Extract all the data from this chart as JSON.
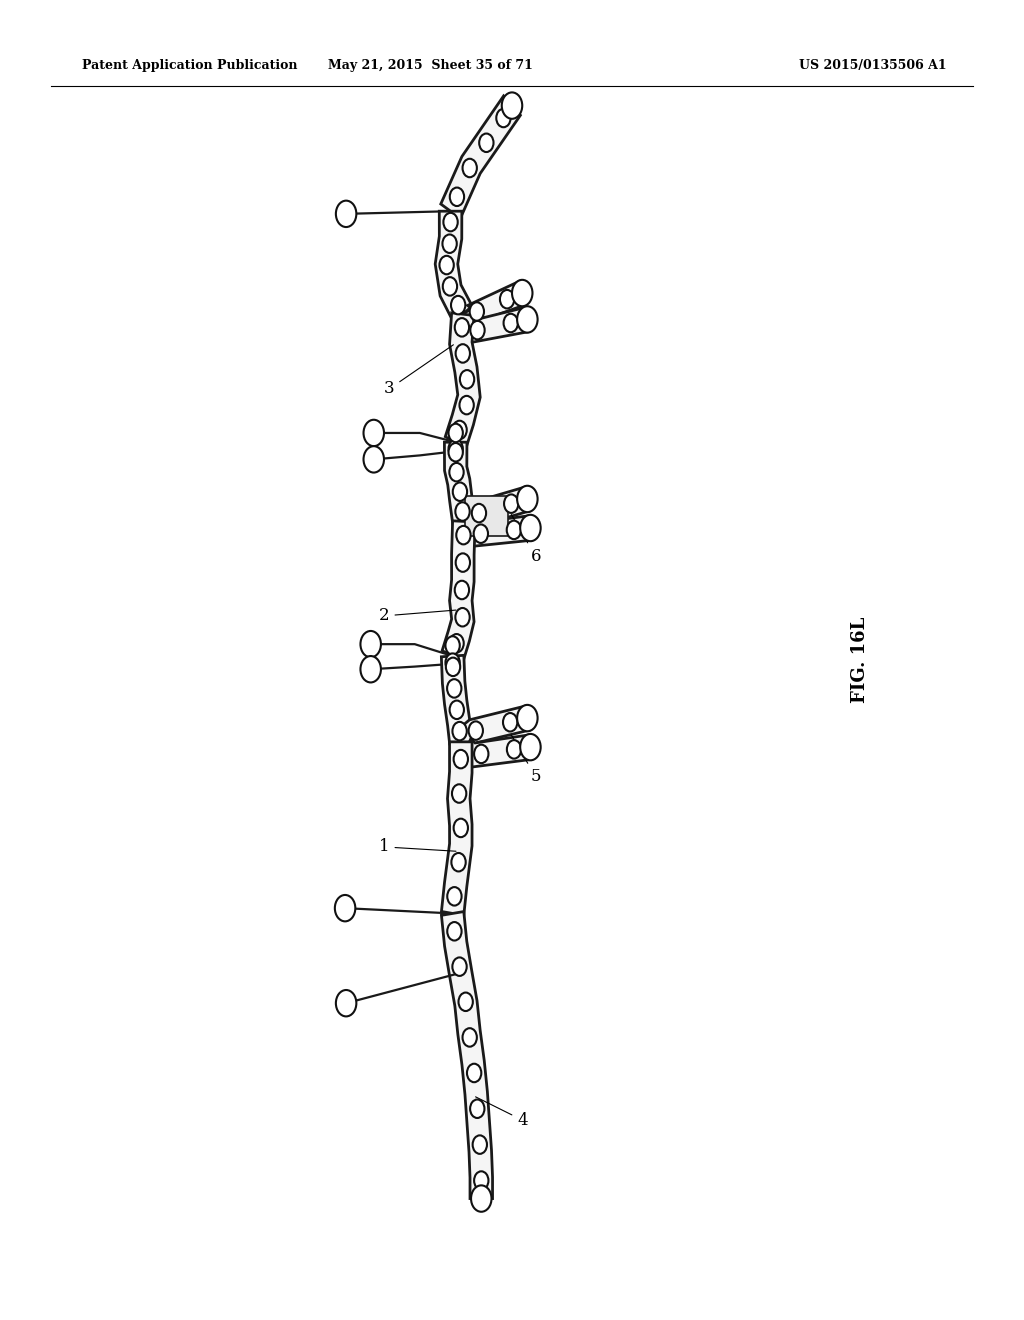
{
  "bg_color": "#ffffff",
  "title_left": "Patent Application Publication",
  "title_mid": "May 21, 2015  Sheet 35 of 71",
  "title_right": "US 2015/0135506 A1",
  "fig_label": "FIG. 16L"
}
